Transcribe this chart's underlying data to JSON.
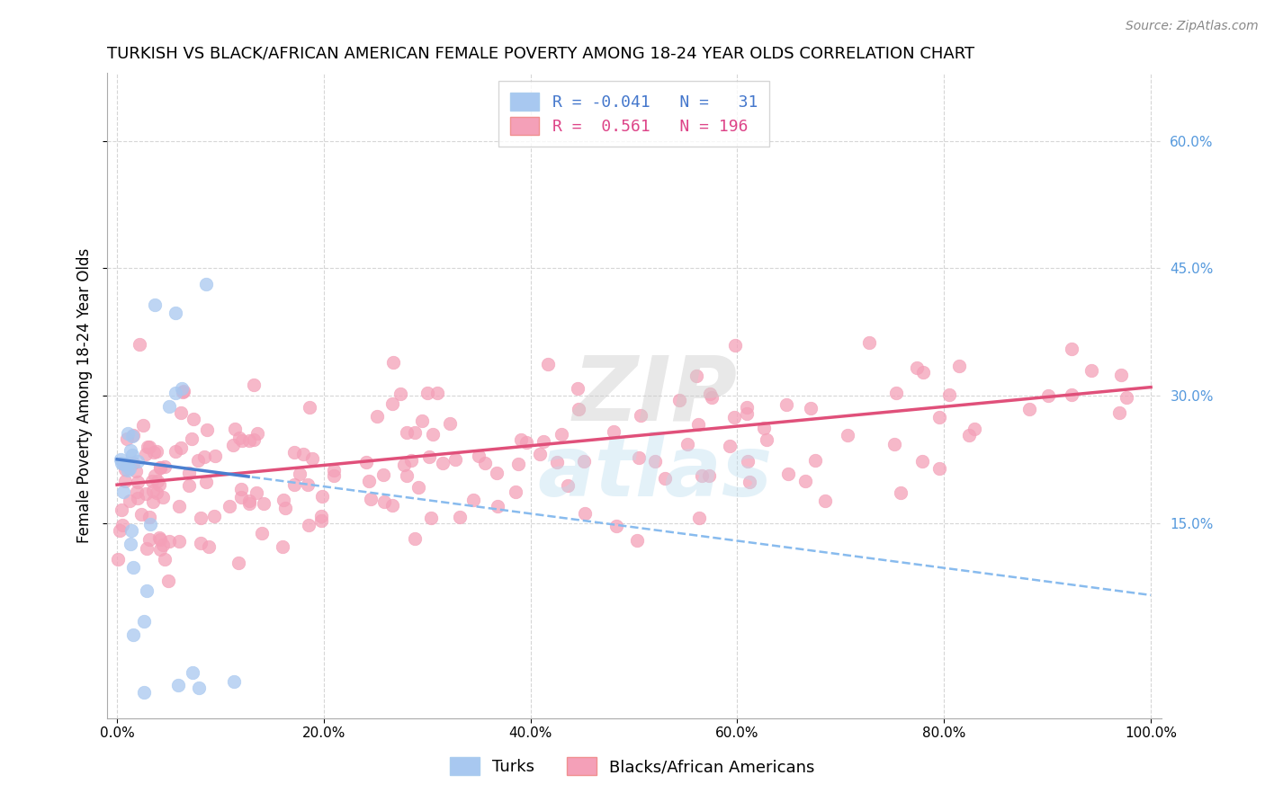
{
  "title": "TURKISH VS BLACK/AFRICAN AMERICAN FEMALE POVERTY AMONG 18-24 YEAR OLDS CORRELATION CHART",
  "source": "Source: ZipAtlas.com",
  "ylabel": "Female Poverty Among 18-24 Year Olds",
  "xlim": [
    -0.01,
    1.01
  ],
  "ylim": [
    -0.08,
    0.68
  ],
  "xticks": [
    0.0,
    0.2,
    0.4,
    0.6,
    0.8,
    1.0
  ],
  "xtick_labels": [
    "0.0%",
    "20.0%",
    "40.0%",
    "60.0%",
    "80.0%",
    "100.0%"
  ],
  "ytick_positions": [
    0.15,
    0.3,
    0.45,
    0.6
  ],
  "ytick_labels": [
    "15.0%",
    "30.0%",
    "45.0%",
    "60.0%"
  ],
  "blue_R": -0.041,
  "blue_N": 31,
  "pink_R": 0.561,
  "pink_N": 196,
  "blue_color": "#a8c8f0",
  "pink_color": "#f4a0b8",
  "blue_line_solid_color": "#4a7fd0",
  "blue_line_dash_color": "#88bbee",
  "pink_line_color": "#e0507a",
  "legend_label_blue": "Turks",
  "legend_label_pink": "Blacks/African Americans",
  "title_fontsize": 13,
  "axis_label_fontsize": 12,
  "tick_fontsize": 11,
  "legend_fontsize": 12,
  "background_color": "#ffffff",
  "grid_color": "#cccccc",
  "blue_line_intercept": 0.225,
  "blue_line_slope": -0.16,
  "pink_line_intercept": 0.195,
  "pink_line_slope": 0.115
}
